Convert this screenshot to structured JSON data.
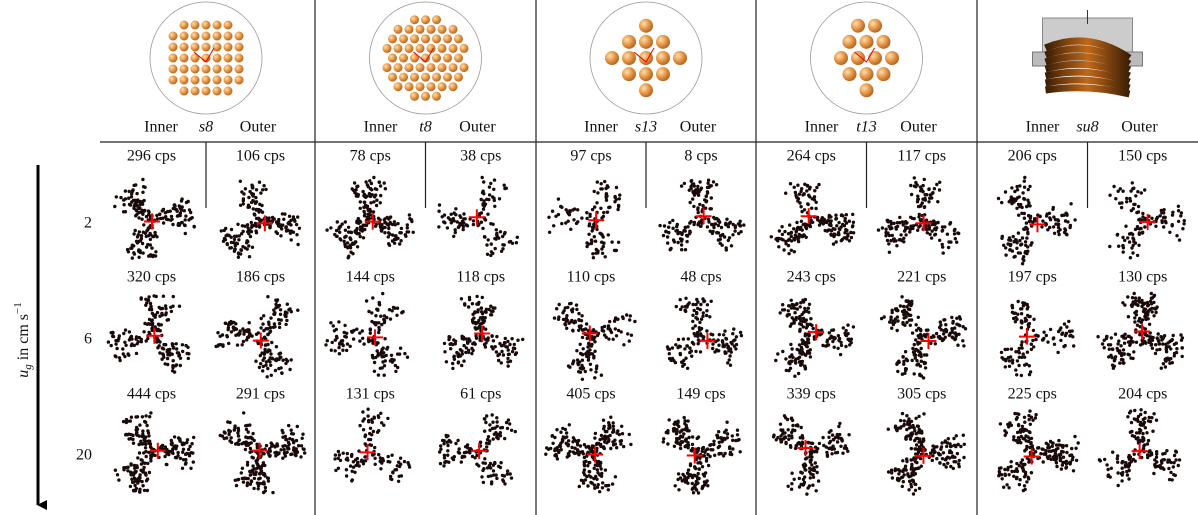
{
  "y_axis_label": {
    "symbol": "u",
    "subscript": "g",
    "text": " in cm s",
    "superscript": "−1"
  },
  "rows": [
    2,
    6,
    20
  ],
  "columns": [
    {
      "name": "s8",
      "inner": "Inner",
      "outer": "Outer",
      "rates": [
        [
          "296 cps",
          "106 cps"
        ],
        [
          "320 cps",
          "186 cps"
        ],
        [
          "444 cps",
          "291 cps"
        ]
      ]
    },
    {
      "name": "t8",
      "inner": "Inner",
      "outer": "Outer",
      "rates": [
        [
          "78 cps",
          "38 cps"
        ],
        [
          "144 cps",
          "118 cps"
        ],
        [
          "131 cps",
          "61 cps"
        ]
      ]
    },
    {
      "name": "s13",
      "inner": "Inner",
      "outer": "Outer",
      "rates": [
        [
          "97 cps",
          "8 cps"
        ],
        [
          "110 cps",
          "48 cps"
        ],
        [
          "405 cps",
          "149 cps"
        ]
      ]
    },
    {
      "name": "t13",
      "inner": "Inner",
      "outer": "Outer",
      "rates": [
        [
          "264 cps",
          "117 cps"
        ],
        [
          "243 cps",
          "221 cps"
        ],
        [
          "339 cps",
          "305 cps"
        ]
      ]
    },
    {
      "name": "su8",
      "inner": "Inner",
      "outer": "Outer",
      "rates": [
        [
          "206 cps",
          "150 cps"
        ],
        [
          "197 cps",
          "130 cps"
        ],
        [
          "225 cps",
          "204 cps"
        ]
      ]
    }
  ]
}
